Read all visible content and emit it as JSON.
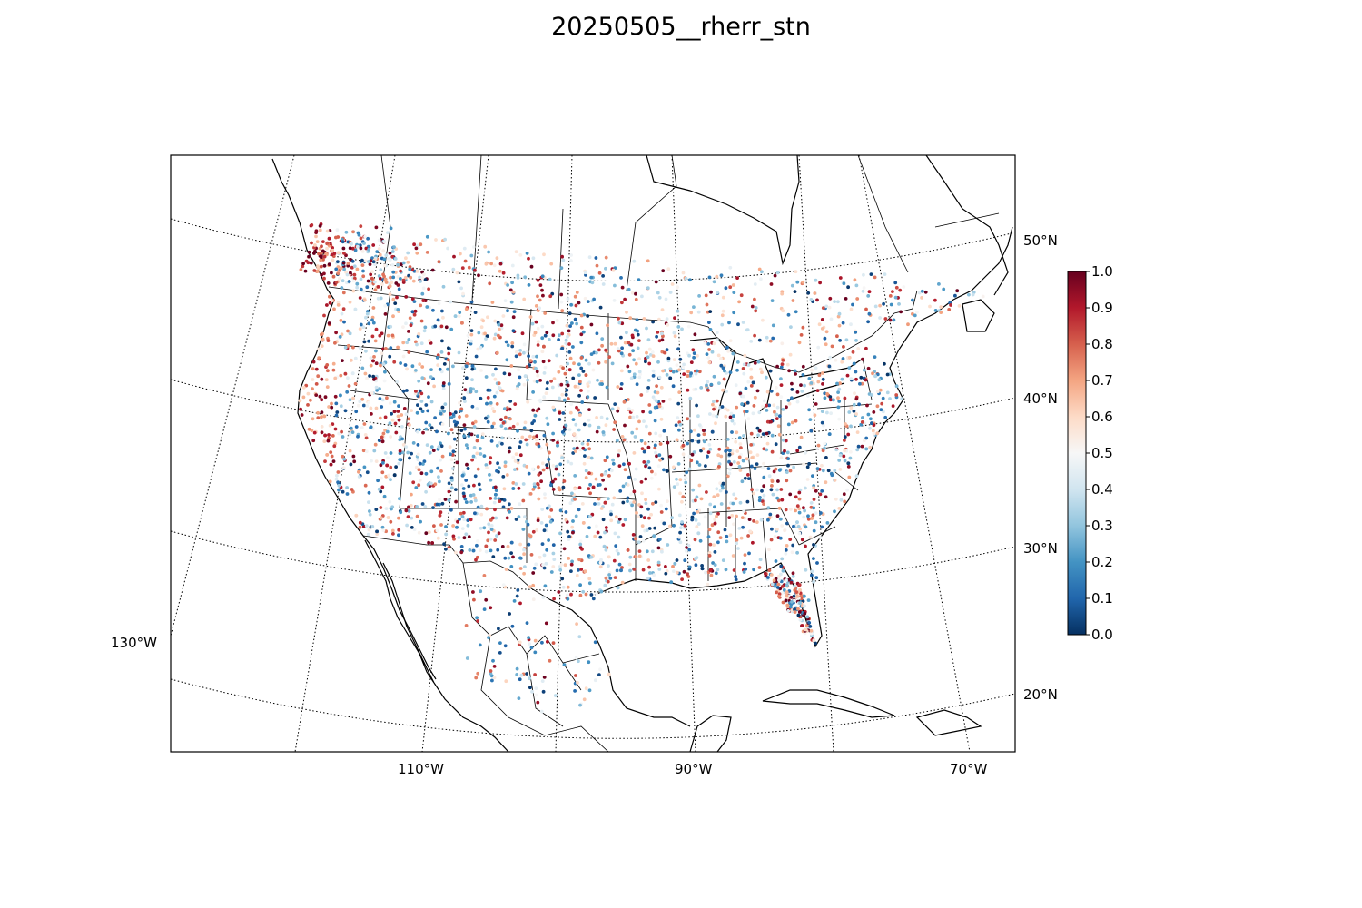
{
  "title": "20250505__rherr_stn",
  "latitude_labels": [
    "50°N",
    "40°N",
    "30°N",
    "20°N"
  ],
  "longitude_labels": [
    "130°W",
    "110°W",
    "90°W",
    "70°W"
  ],
  "colorbar": {
    "ticks": [
      "0.0",
      "0.1",
      "0.2",
      "0.3",
      "0.4",
      "0.5",
      "0.6",
      "0.7",
      "0.8",
      "0.9",
      "1.0"
    ],
    "range": [
      0,
      1
    ],
    "colormap": "RdBu_r",
    "colors": [
      "#053061",
      "#2166ac",
      "#4393c3",
      "#92c5de",
      "#d1e5f0",
      "#f7f7f7",
      "#fddbc7",
      "#f4a582",
      "#d6604d",
      "#b2182b",
      "#67001f"
    ]
  },
  "chart_data": {
    "type": "scatter",
    "title": "20250505__rherr_stn",
    "projection": "lambert conformal",
    "value_range": [
      0,
      1
    ],
    "legend_position": "right"
  }
}
